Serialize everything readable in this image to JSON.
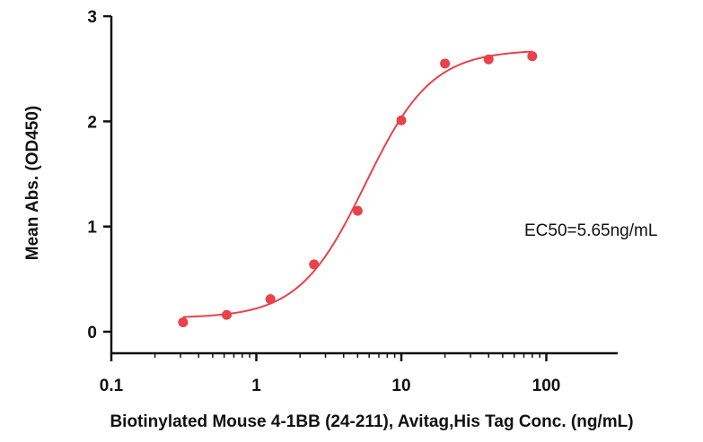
{
  "chart_data": {
    "type": "scatter",
    "title": "",
    "xlabel": "Biotinylated Mouse 4-1BB (24-211), Avitag,His Tag Conc. (ng/mL)",
    "ylabel": "Mean Abs. (OD450)",
    "x_scale": "log",
    "xlim": [
      0.1,
      200
    ],
    "ylim": [
      -0.2,
      3
    ],
    "x_ticks": [
      0.1,
      1,
      10,
      100
    ],
    "x_tick_labels": [
      "0.1",
      "1",
      "10",
      "100"
    ],
    "y_ticks": [
      0,
      1,
      2,
      3
    ],
    "y_tick_labels": [
      "0",
      "1",
      "2",
      "3"
    ],
    "grid": false,
    "annotation": "EC50=5.65ng/mL",
    "series": [
      {
        "color": "#e8424a",
        "x": [
          0.3125,
          0.625,
          1.25,
          2.5,
          5,
          10,
          20,
          40,
          80
        ],
        "y": [
          0.09,
          0.16,
          0.31,
          0.64,
          1.15,
          2.01,
          2.55,
          2.59,
          2.62
        ]
      }
    ],
    "fit": {
      "color": "#e8424a",
      "model": "4PL",
      "bottom": 0.13,
      "top": 2.68,
      "ec50": 5.65,
      "hill": 1.9
    }
  }
}
